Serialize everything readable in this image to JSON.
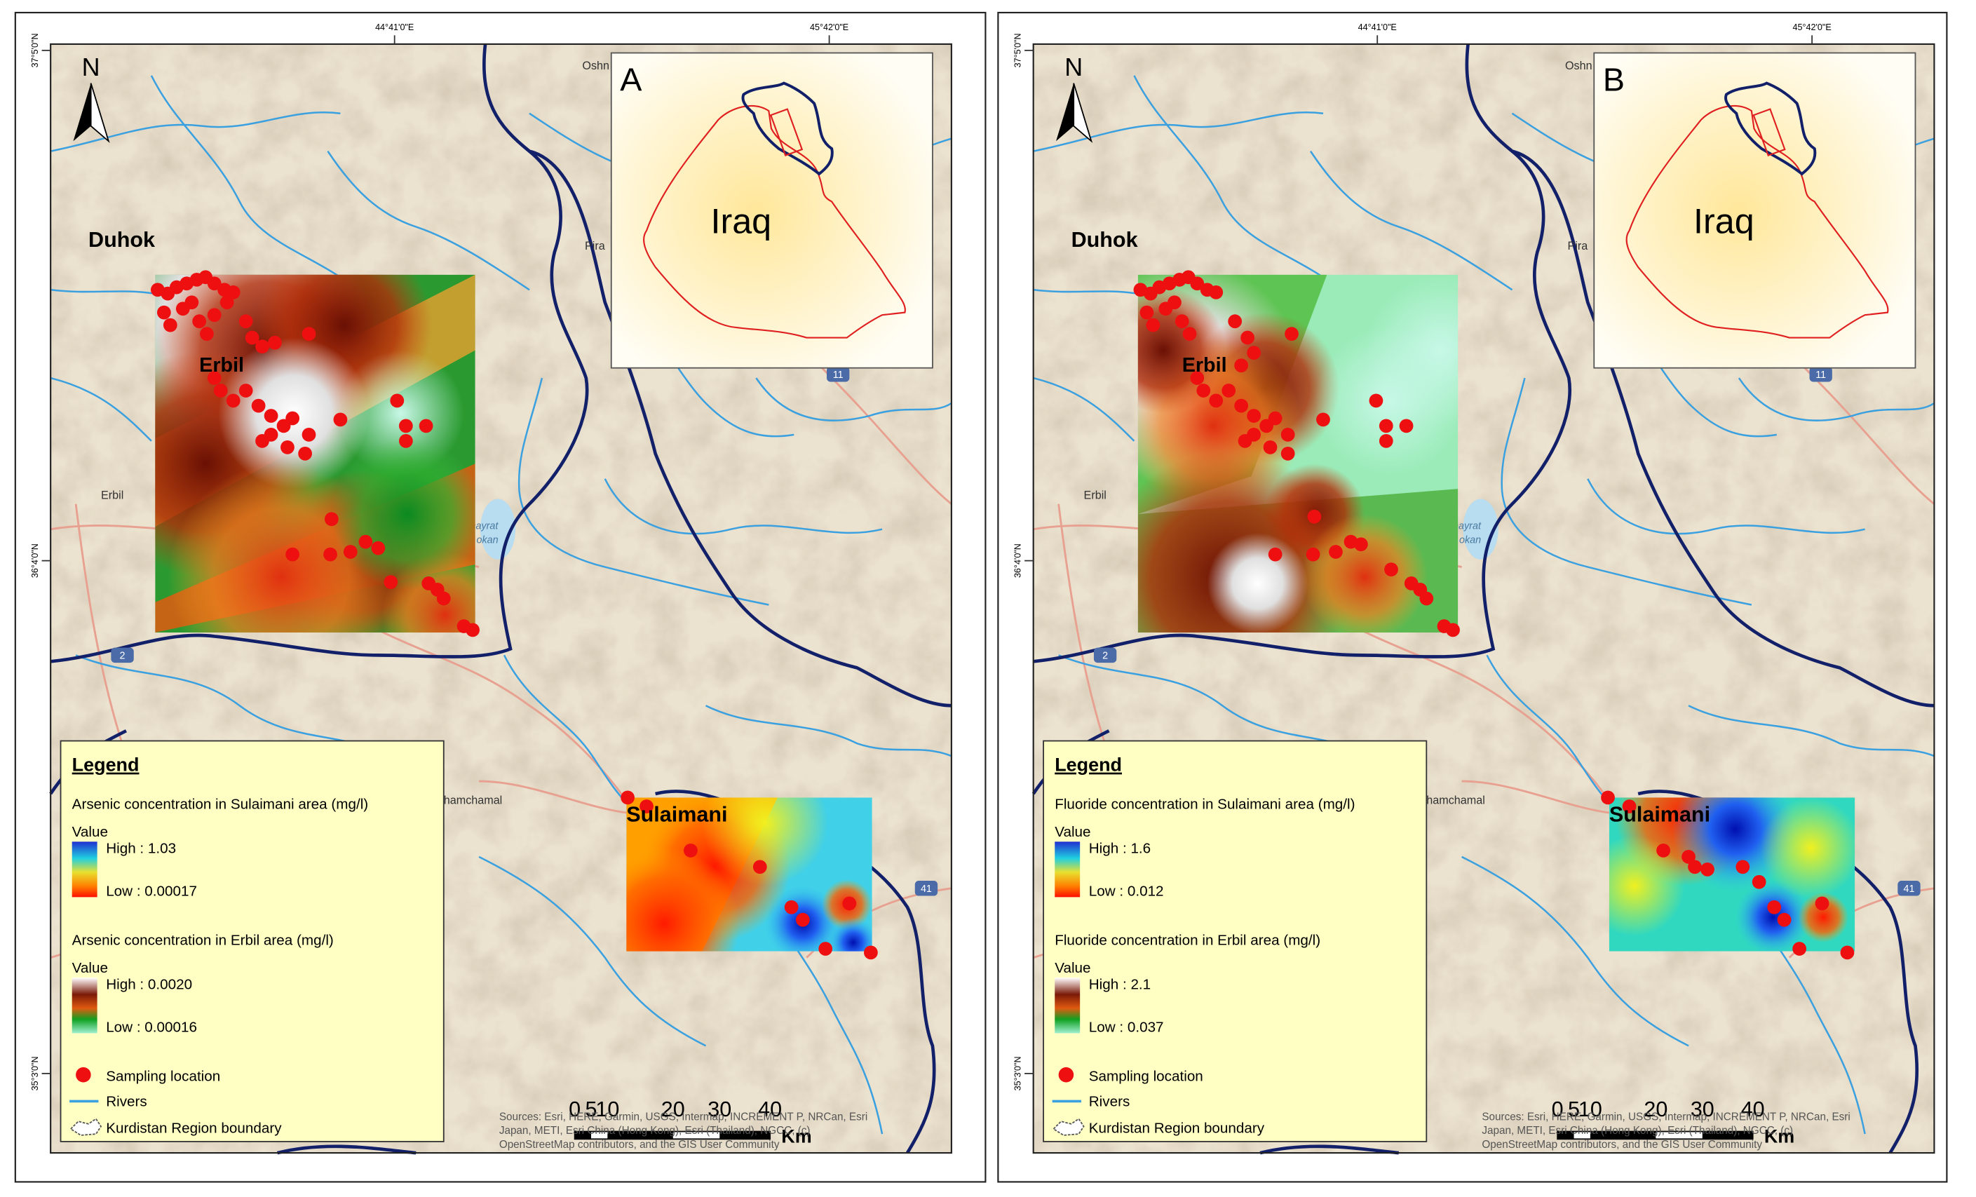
{
  "panels": [
    {
      "letter": "A",
      "country": "Iraq",
      "north": "N",
      "lon_labels": [
        "44°41'0\"E",
        "45°42'0\"E"
      ],
      "lat_labels": [
        "37°5'0\"N",
        "36°4'0\"N",
        "35°3'0\"N"
      ],
      "places": {
        "duhok": "Duhok",
        "erbil_heat": "Erbil",
        "erbil_town": "Erbil",
        "sulaimani": "Sulaimani",
        "oshn": "Oshn",
        "pira": "Pira",
        "chamchamal": "hamchamal",
        "lake_1": "hayrat",
        "lake_2": "okan"
      },
      "shields": [
        "11",
        "2",
        "41"
      ],
      "legend": {
        "title": "Legend",
        "sulaimani_title": "Arsenic concentration in Sulaimani area (mg/l)",
        "sulaimani_value": "Value",
        "sulaimani_high": "High : 1.03",
        "sulaimani_low": "Low : 0.00017",
        "erbil_title": "Arsenic concentration in Erbil area (mg/l)",
        "erbil_value": "Value",
        "erbil_high": "High : 0.0020",
        "erbil_low": "Low : 0.00016",
        "sampling": "Sampling location",
        "rivers": "Rivers",
        "boundary": "Kurdistan Region boundary"
      },
      "scale": {
        "ticks": [
          0,
          5,
          10,
          20,
          30,
          40
        ],
        "unit": "Km"
      },
      "attribution": [
        "Sources: Esri, HERE, Garmin, USGS, Intermap, INCREMENT P, NRCan, Esri",
        "Japan, METI, Esri China (Hong Kong), Esri (Thailand), NGCC, (c)",
        "OpenStreetMap contributors, and the GIS User Community"
      ]
    },
    {
      "letter": "B",
      "country": "Iraq",
      "north": "N",
      "lon_labels": [
        "44°41'0\"E",
        "45°42'0\"E"
      ],
      "lat_labels": [
        "37°5'0\"N",
        "36°4'0\"N",
        "35°3'0\"N"
      ],
      "places": {
        "duhok": "Duhok",
        "erbil_heat": "Erbil",
        "erbil_town": "Erbil",
        "sulaimani": "Sulaimani",
        "oshn": "Oshn",
        "pira": "Pira",
        "chamchamal": "hamchamal",
        "lake_1": "hayrat",
        "lake_2": "okan"
      },
      "shields": [
        "11",
        "2",
        "41"
      ],
      "legend": {
        "title": "Legend",
        "sulaimani_title": "Fluoride concentration in Sulaimani area (mg/l)",
        "sulaimani_value": "Value",
        "sulaimani_high": "High : 1.6",
        "sulaimani_low": "Low : 0.012",
        "erbil_title": "Fluoride concentration in Erbil area (mg/l)",
        "erbil_value": "Value",
        "erbil_high": "High : 2.1",
        "erbil_low": "Low : 0.037",
        "sampling": "Sampling location",
        "rivers": "Rivers",
        "boundary": "Kurdistan Region boundary"
      },
      "scale": {
        "ticks": [
          0,
          5,
          10,
          20,
          30,
          40
        ],
        "unit": "Km"
      },
      "attribution": [
        "Sources: Esri, HERE, Garmin, USGS, Intermap, INCREMENT P, NRCan, Esri",
        "Japan, METI, Esri China (Hong Kong), Esri (Thailand), NGCC, (c)",
        "OpenStreetMap contributors, and the GIS User Community"
      ]
    }
  ]
}
